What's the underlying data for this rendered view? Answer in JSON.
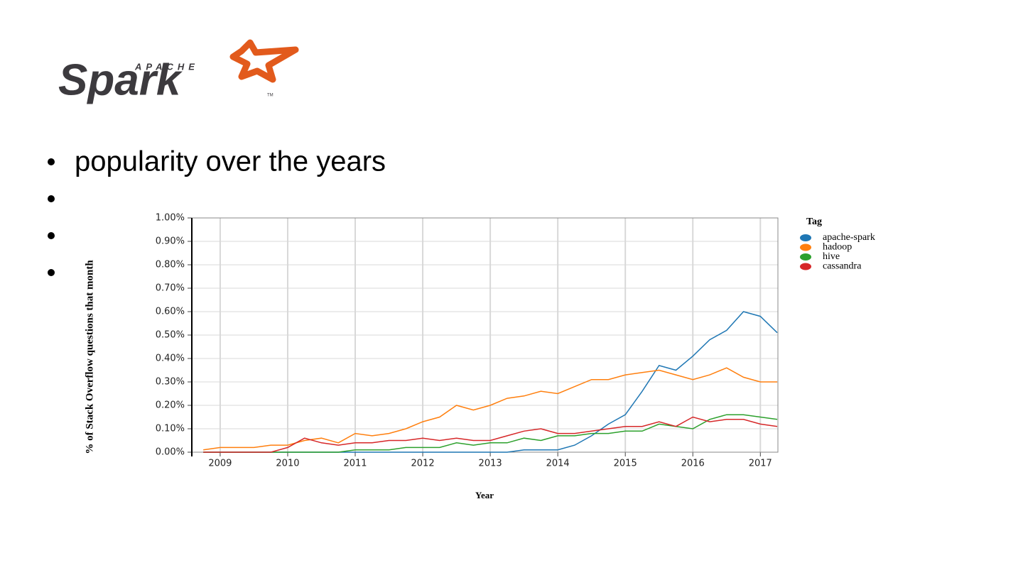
{
  "logo": {
    "top": "APACHE",
    "word": "Spark",
    "mark": "TM"
  },
  "bullets": [
    "popularity over the years"
  ],
  "chart_data": {
    "type": "line",
    "y_label": "% of Stack Overflow questions that month",
    "x_label": "Year",
    "legend_title": "Tag",
    "legend": "right",
    "grid": true,
    "x": [
      2008.75,
      2009,
      2009.25,
      2009.5,
      2009.75,
      2010,
      2010.25,
      2010.5,
      2010.75,
      2011,
      2011.25,
      2011.5,
      2011.75,
      2012,
      2012.25,
      2012.5,
      2012.75,
      2013,
      2013.25,
      2013.5,
      2013.75,
      2014,
      2014.25,
      2014.5,
      2014.75,
      2015,
      2015.25,
      2015.5,
      2015.75,
      2016,
      2016.25,
      2016.5,
      2016.75,
      2017,
      2017.25
    ],
    "xlim": [
      2008.58,
      2017.26
    ],
    "xticks": [
      2009,
      2010,
      2011,
      2012,
      2013,
      2014,
      2015,
      2016,
      2017
    ],
    "ylim": [
      0,
      1
    ],
    "yticks": [
      {
        "value": 0,
        "label": "0.00%"
      },
      {
        "value": 0.1,
        "label": "0.10%"
      },
      {
        "value": 0.2,
        "label": "0.20%"
      },
      {
        "value": 0.3,
        "label": "0.30%"
      },
      {
        "value": 0.4,
        "label": "0.40%"
      },
      {
        "value": 0.5,
        "label": "0.50%"
      },
      {
        "value": 0.6,
        "label": "0.60%"
      },
      {
        "value": 0.7,
        "label": "0.70%"
      },
      {
        "value": 0.8,
        "label": "0.80%"
      },
      {
        "value": 0.9,
        "label": "0.90%"
      },
      {
        "value": 1,
        "label": "1.00%"
      }
    ],
    "series": [
      {
        "name": "apache-spark",
        "color": "#1f77b4",
        "values": [
          0,
          0,
          0,
          0,
          0,
          0,
          0,
          0,
          0,
          0,
          0,
          0,
          0,
          0,
          0,
          0,
          0,
          0,
          0,
          0.01,
          0.01,
          0.01,
          0.03,
          0.07,
          0.12,
          0.16,
          0.26,
          0.37,
          0.35,
          0.41,
          0.48,
          0.52,
          0.6,
          0.58,
          0.51
        ]
      },
      {
        "name": "hadoop",
        "color": "#ff7f0e",
        "values": [
          0.01,
          0.02,
          0.02,
          0.02,
          0.03,
          0.03,
          0.05,
          0.06,
          0.04,
          0.08,
          0.07,
          0.08,
          0.1,
          0.13,
          0.15,
          0.2,
          0.18,
          0.2,
          0.23,
          0.24,
          0.26,
          0.25,
          0.28,
          0.31,
          0.31,
          0.33,
          0.34,
          0.35,
          0.33,
          0.31,
          0.33,
          0.36,
          0.32,
          0.3,
          0.3
        ]
      },
      {
        "name": "hive",
        "color": "#2ca02c",
        "values": [
          0,
          0,
          0,
          0,
          0,
          0,
          0,
          0,
          0,
          0.01,
          0.01,
          0.01,
          0.02,
          0.02,
          0.02,
          0.04,
          0.03,
          0.04,
          0.04,
          0.06,
          0.05,
          0.07,
          0.07,
          0.08,
          0.08,
          0.09,
          0.09,
          0.12,
          0.11,
          0.1,
          0.14,
          0.16,
          0.16,
          0.15,
          0.14
        ]
      },
      {
        "name": "cassandra",
        "color": "#d62728",
        "values": [
          0,
          0,
          0,
          0,
          0,
          0.02,
          0.06,
          0.04,
          0.03,
          0.04,
          0.04,
          0.05,
          0.05,
          0.06,
          0.05,
          0.06,
          0.05,
          0.05,
          0.07,
          0.09,
          0.1,
          0.08,
          0.08,
          0.09,
          0.1,
          0.11,
          0.11,
          0.13,
          0.11,
          0.15,
          0.13,
          0.14,
          0.14,
          0.12,
          0.11
        ]
      }
    ]
  }
}
